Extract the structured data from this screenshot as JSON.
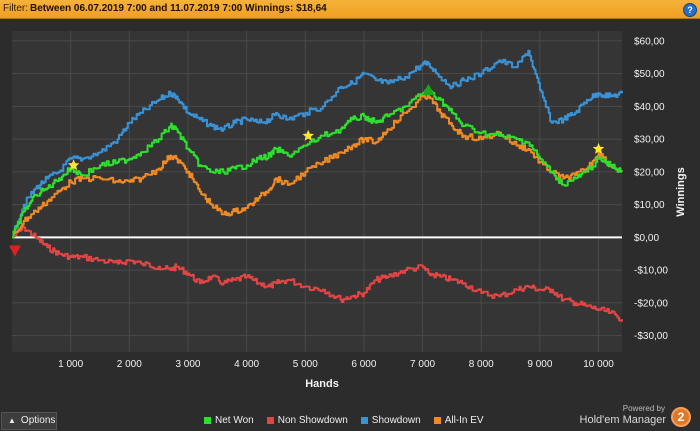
{
  "filter": {
    "prefix": "Filter:",
    "text": "Between 06.07.2019 7:00 and 11.07.2019 7:00  Winnings: $18,64"
  },
  "help_icon": "?",
  "bottom": {
    "options_label": "Options",
    "powered_by": "Powered by",
    "brand": "Hold'em Manager",
    "brand_badge": "2"
  },
  "colors": {
    "background": "#2c2c2c",
    "plot_background": "#353535",
    "grid": "#4a4a4a",
    "zero_line": "#ffffff",
    "net_won": "#2ee02e",
    "non_showdown": "#e34545",
    "showdown": "#3a92d6",
    "all_in_ev": "#f08a24",
    "filter_bar": "#f0a020"
  },
  "chart_data": {
    "type": "line",
    "title": "",
    "xlabel": "Hands",
    "ylabel": "Winnings",
    "xlim": [
      0,
      10400
    ],
    "ylim": [
      -35,
      63
    ],
    "x_ticks": [
      1000,
      2000,
      3000,
      4000,
      5000,
      6000,
      7000,
      8000,
      9000,
      10000
    ],
    "x_tick_labels": [
      "1 000",
      "2 000",
      "3 000",
      "4 000",
      "5 000",
      "6 000",
      "7 000",
      "8 000",
      "9 000",
      "10 000"
    ],
    "y_ticks": [
      60,
      50,
      40,
      30,
      20,
      10,
      0,
      -10,
      -20,
      -30
    ],
    "y_tick_labels": [
      "$60,00",
      "$50,00",
      "$40,00",
      "$30,00",
      "$20,00",
      "$10,00",
      "$0,00",
      "-$10,00",
      "-$20,00",
      "-$30,00"
    ],
    "grid": true,
    "legend_position": "bottom",
    "x": [
      0,
      200,
      400,
      600,
      800,
      1000,
      1200,
      1500,
      1800,
      2000,
      2200,
      2500,
      2700,
      2800,
      3000,
      3200,
      3400,
      3600,
      3800,
      4000,
      4200,
      4400,
      4500,
      4700,
      5000,
      5300,
      5600,
      5800,
      6000,
      6200,
      6400,
      6700,
      7000,
      7100,
      7300,
      7500,
      7700,
      8000,
      8300,
      8600,
      8800,
      9000,
      9200,
      9400,
      9600,
      9800,
      10000,
      10200,
      10400
    ],
    "series": [
      {
        "name": "Net Won",
        "color": "#2ee02e",
        "values": [
          0,
          8,
          13,
          15,
          18,
          21,
          19,
          22,
          23,
          24,
          26,
          30,
          34,
          33,
          27,
          22,
          20,
          20,
          21,
          22,
          24,
          25,
          27,
          25,
          28,
          31,
          33,
          36,
          37,
          35,
          37,
          40,
          44,
          45,
          42,
          38,
          34,
          32,
          31,
          30,
          29,
          24,
          20,
          16,
          18,
          20,
          24,
          22,
          20
        ]
      },
      {
        "name": "Non Showdown",
        "color": "#e34545",
        "values": [
          0,
          3,
          0,
          -3,
          -5,
          -6,
          -6,
          -7,
          -8,
          -7,
          -8,
          -9,
          -10,
          -9,
          -11,
          -14,
          -12,
          -14,
          -13,
          -12,
          -14,
          -15,
          -14,
          -13,
          -15,
          -16,
          -19,
          -18,
          -17,
          -13,
          -12,
          -10,
          -9,
          -11,
          -12,
          -13,
          -14,
          -17,
          -18,
          -16,
          -15,
          -16,
          -16,
          -19,
          -20,
          -21,
          -22,
          -23,
          -25
        ]
      },
      {
        "name": "Showdown",
        "color": "#3a92d6",
        "values": [
          0,
          10,
          15,
          18,
          20,
          24,
          24,
          26,
          30,
          35,
          38,
          42,
          44,
          43,
          38,
          36,
          34,
          33,
          35,
          36,
          35,
          36,
          38,
          36,
          38,
          40,
          46,
          47,
          50,
          48,
          47,
          49,
          53,
          53,
          49,
          46,
          48,
          50,
          54,
          52,
          57,
          45,
          35,
          36,
          38,
          42,
          44,
          43,
          44
        ]
      },
      {
        "name": "All-In EV",
        "color": "#f08a24",
        "values": [
          0,
          5,
          8,
          11,
          14,
          17,
          18,
          18,
          17,
          17,
          18,
          21,
          25,
          24,
          20,
          14,
          10,
          7,
          8,
          9,
          12,
          15,
          18,
          16,
          20,
          23,
          26,
          28,
          30,
          29,
          33,
          38,
          43,
          43,
          38,
          34,
          31,
          30,
          32,
          28,
          27,
          23,
          20,
          18,
          19,
          21,
          26,
          22,
          20
        ]
      }
    ],
    "markers": [
      {
        "type": "star",
        "series": "Net Won",
        "x": 1050,
        "y": 22,
        "color": "#ffe82a"
      },
      {
        "type": "star",
        "series": "Net Won",
        "x": 5050,
        "y": 31,
        "color": "#ffe82a"
      },
      {
        "type": "star",
        "series": "Net Won",
        "x": 10000,
        "y": 27,
        "color": "#ffe82a"
      },
      {
        "type": "triangle-up",
        "series": "Net Won",
        "x": 7100,
        "y": 45,
        "color": "#1aa81a"
      },
      {
        "type": "triangle-down",
        "series": "Net Won",
        "x": 50,
        "y": -4,
        "color": "#e02020"
      }
    ]
  }
}
